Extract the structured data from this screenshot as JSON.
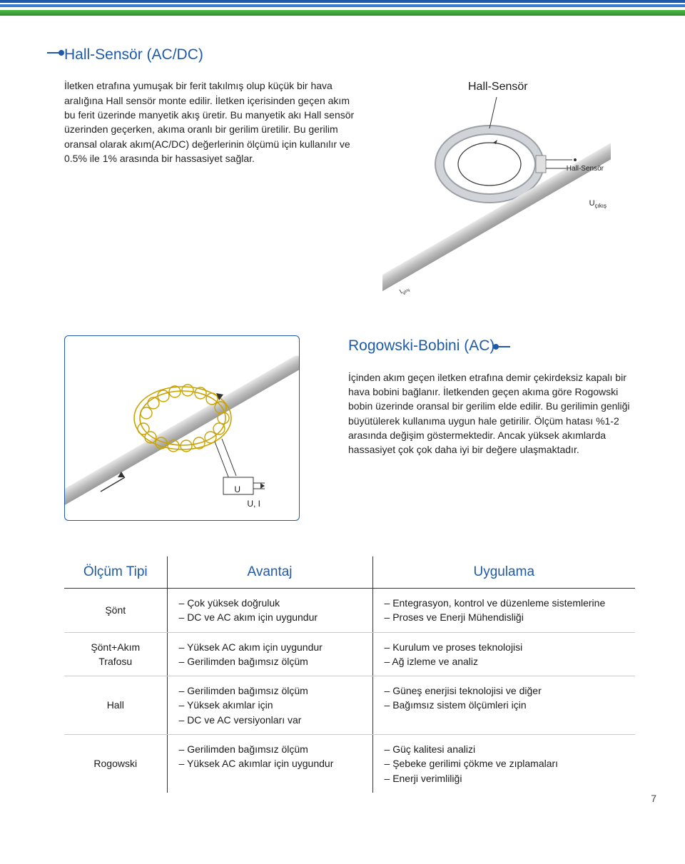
{
  "page_number": "7",
  "colors": {
    "brand_blue": "#1e5aa8",
    "bar_blue_light": "#3a7dd1",
    "bar_green": "#4db848",
    "text": "#1a1a1a",
    "border_gray": "#cccccc"
  },
  "hall": {
    "title": "Hall-Sensör (AC/DC)",
    "body": "İletken etrafına yumuşak bir ferit takılmış olup küçük bir hava aralığına Hall sensör monte edilir. İletken içerisinden geçen akım bu ferit üzerinde manyetik akış üretir. Bu manyetik akı Hall sensör üzerinden geçerken, akıma oranlı bir gerilim üretilir. Bu gerilim oransal olarak akım(AC/DC) değerlerinin ölçümü için kullanılır ve 0.5% ile 1% arasında bir hassasiyet sağlar.",
    "diagram_label_top": "Hall-Sensör",
    "diagram_label_side": "Hall-Sensör",
    "u_out_label": "U",
    "u_out_sub": "çıkış",
    "i_girl_label": "Igiriş"
  },
  "rogowski": {
    "title": "Rogowski-Bobini (AC)",
    "body": "İçinden akım geçen iletken etrafına demir çekirdeksiz kapalı bir hava bobini bağlanır. İletkenden geçen akıma göre Rogowski bobin üzerinde oransal bir gerilim elde edilir. Bu gerilimin genliği büyütülerek kullanıma uygun hale getirilir. Ölçüm hatası %1-2 arasında değişim göstermektedir. Ancak yüksek akımlarda hassasiyet çok çok daha iyi bir değere ulaşmaktadır.",
    "u_label": "U",
    "ui_label": "U, I"
  },
  "table": {
    "headers": [
      "Ölçüm Tipi",
      "Avantaj",
      "Uygulama"
    ],
    "rows": [
      {
        "type": "Şönt",
        "advantages": [
          "Çok yüksek doğruluk",
          "DC ve AC akım için uygundur"
        ],
        "applications": [
          "Entegrasyon, kontrol ve düzenleme sistemlerine",
          "Proses ve Enerji Mühendisliği"
        ]
      },
      {
        "type": "Şönt+Akım Trafosu",
        "advantages": [
          "Yüksek AC akım için uygundur",
          "Gerilimden bağımsız ölçüm"
        ],
        "applications": [
          "Kurulum ve proses teknolojisi",
          "Ağ izleme ve analiz"
        ]
      },
      {
        "type": "Hall",
        "advantages": [
          "Gerilimden bağımsız ölçüm",
          "Yüksek akımlar için",
          "DC ve AC versiyonları var"
        ],
        "applications": [
          "Güneş enerjisi teknolojisi ve diğer",
          "Bağımsız sistem ölçümleri için"
        ]
      },
      {
        "type": "Rogowski",
        "advantages": [
          "Gerilimden bağımsız ölçüm",
          "Yüksek AC akımlar için uygundur"
        ],
        "applications": [
          "Güç kalitesi analizi",
          "Şebeke gerilimi çökme ve zıplamaları",
          "Enerji verimliliği"
        ]
      }
    ]
  }
}
